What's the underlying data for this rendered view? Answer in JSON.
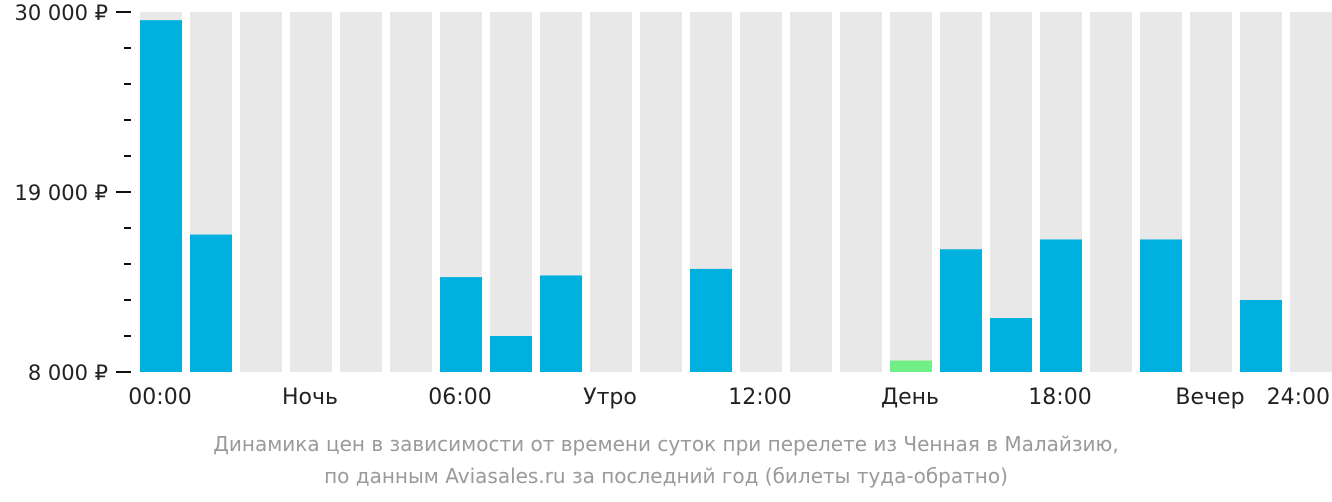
{
  "chart_data": {
    "type": "bar",
    "currency": "₽",
    "ylim": [
      8000,
      30000
    ],
    "yticks": [
      {
        "value": 30000,
        "label": "30 000 ₽"
      },
      {
        "value": 19000,
        "label": "19 000 ₽"
      },
      {
        "value": 8000,
        "label": "8 000 ₽"
      }
    ],
    "minor_ticks": [
      10200,
      12400,
      14600,
      16800,
      21200,
      23400,
      25600,
      27800
    ],
    "x_labels": [
      "00:00",
      "Ночь",
      "06:00",
      "Утро",
      "12:00",
      "День",
      "18:00",
      "Вечер",
      "24:00"
    ],
    "values": [
      29500,
      16400,
      null,
      null,
      null,
      null,
      13800,
      10200,
      13900,
      null,
      null,
      14300,
      null,
      null,
      null,
      8700,
      15500,
      11300,
      16100,
      null,
      16100,
      null,
      12400,
      null
    ],
    "bar_colors": [
      "#00b0de",
      "#00b0de",
      null,
      null,
      null,
      null,
      "#00b0de",
      "#00b0de",
      "#00b0de",
      null,
      null,
      "#00b0de",
      null,
      null,
      null,
      "#6fef85",
      "#00b0de",
      "#00b0de",
      "#00b0de",
      null,
      "#00b0de",
      null,
      "#00b0de",
      null
    ],
    "colors": {
      "bar": "#00b0de",
      "cheapest": "#6fef85",
      "column_bg": "#e8e8e8",
      "axis": "#111111"
    }
  },
  "caption": {
    "line1": "Динамика цен в зависимости от времени суток при перелете из Ченная в Малайзию,",
    "line2": "по данным Aviasales.ru за последний год (билеты туда-обратно)"
  }
}
